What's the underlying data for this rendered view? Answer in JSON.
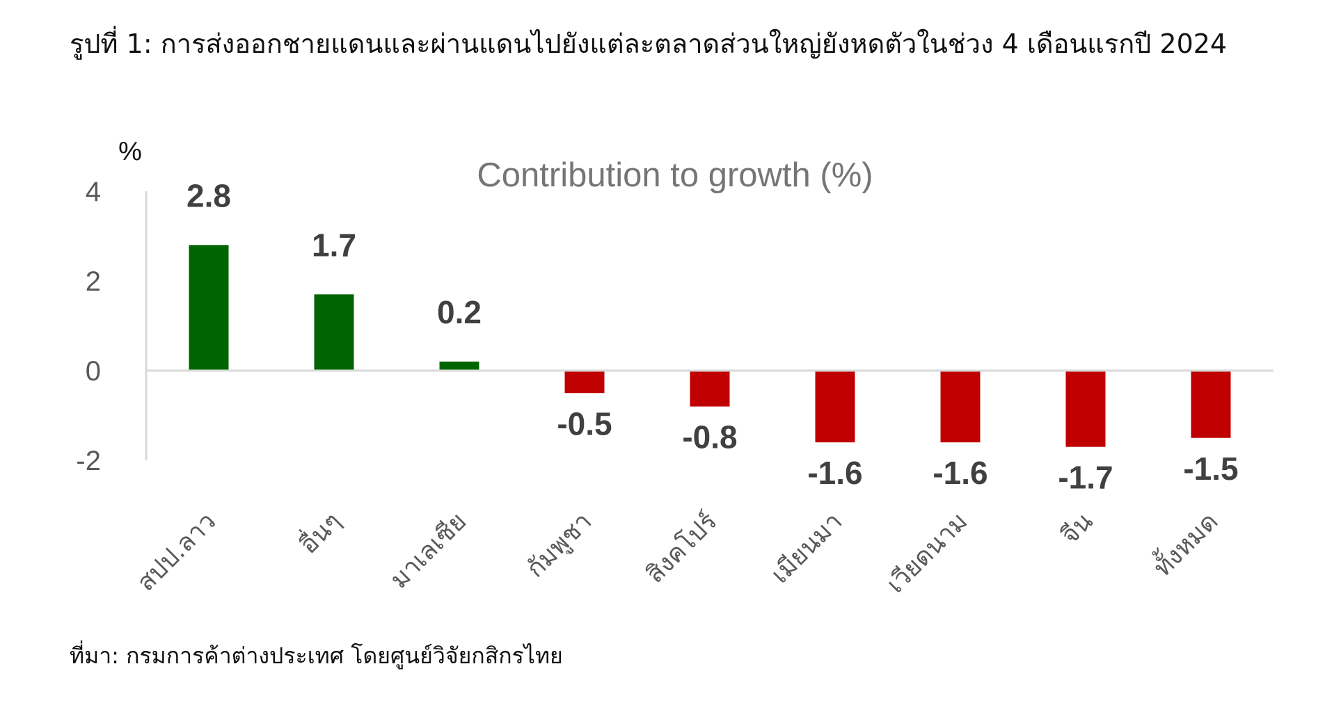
{
  "figure": {
    "title": "รูปที่ 1: การส่งออกชายแดนและผ่านแดนไปยังแต่ละตลาดส่วนใหญ่ยังหดตัวในช่วง 4 เดือนแรกปี 2024",
    "source": "ที่มา: กรมการค้าต่างประเทศ โดยศูนย์วิจัยกสิกรไทย"
  },
  "chart_data": {
    "type": "bar",
    "title": "Contribution to growth (%)",
    "ylabel": "%",
    "xlabel": "",
    "ylim": [
      -2,
      4
    ],
    "yticks": [
      4,
      2,
      0,
      -2
    ],
    "grid": false,
    "legend": "none",
    "categories": [
      "สปป.ลาว",
      "อื่นๆ",
      "มาเลเซีย",
      "กัมพูชา",
      "สิงคโปร์",
      "เมียนมา",
      "เวียดนาม",
      "จีน",
      "ทั้งหมด"
    ],
    "values": [
      2.8,
      1.7,
      0.2,
      -0.5,
      -0.8,
      -1.6,
      -1.6,
      -1.7,
      -1.5
    ],
    "value_labels": [
      "2.8",
      "1.7",
      "0.2",
      "-0.5",
      "-0.8",
      "-1.6",
      "-1.6",
      "-1.7",
      "-1.5"
    ],
    "colors": {
      "positive": "#006400",
      "negative": "#C00000",
      "axis": "#D9D9D9",
      "tick_text": "#595959",
      "label_text": "#404040",
      "title_text": "#757575"
    }
  }
}
